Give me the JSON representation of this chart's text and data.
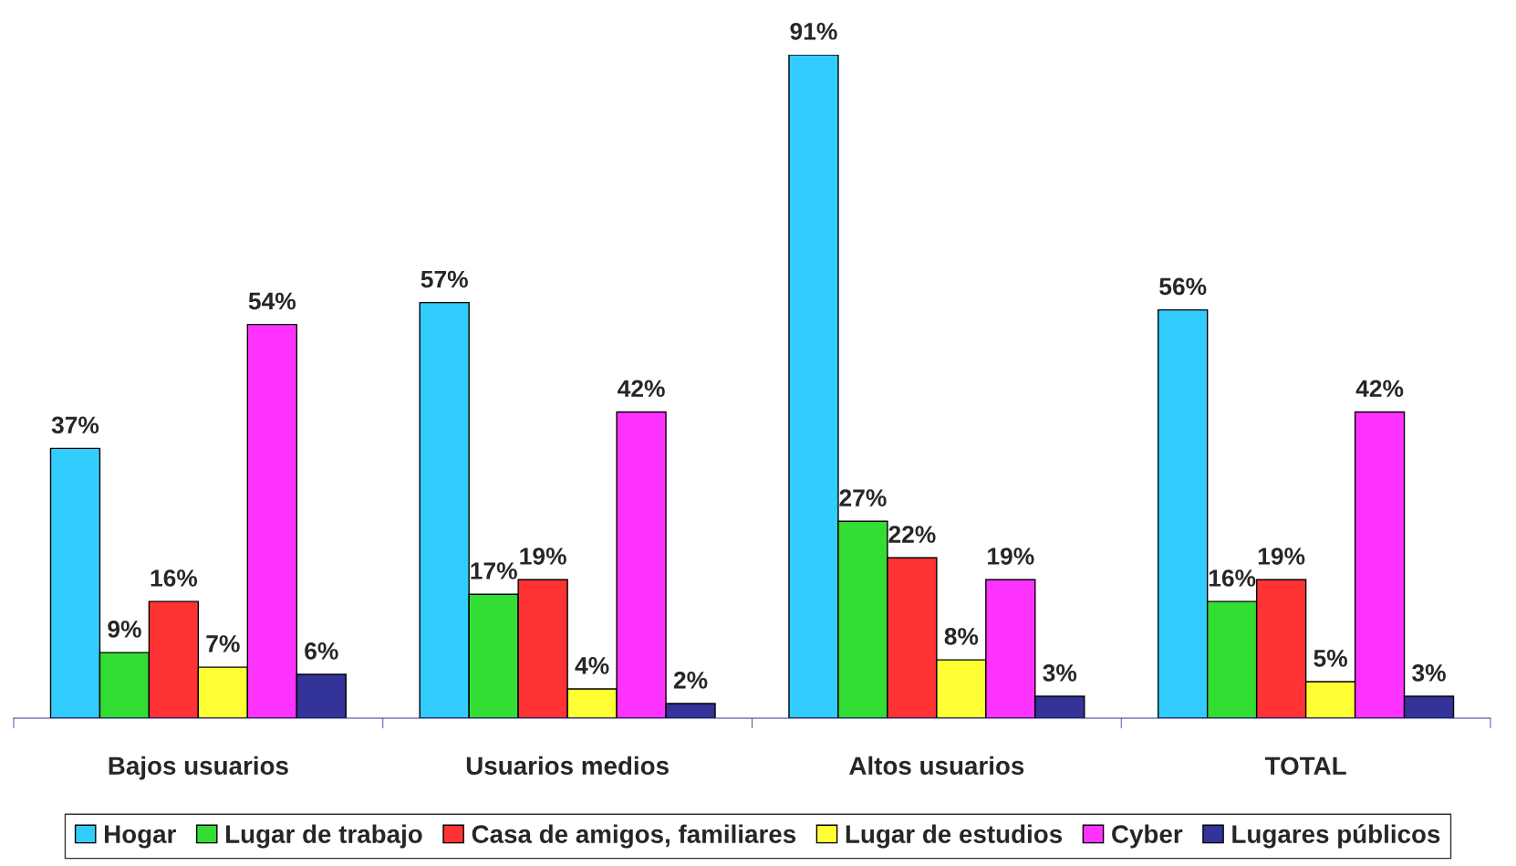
{
  "chart_data": {
    "type": "bar",
    "categories": [
      "Bajos usuarios",
      "Usuarios medios",
      "Altos usuarios",
      "TOTAL"
    ],
    "series": [
      {
        "name": "Hogar",
        "color": "#33ccff",
        "values": [
          37,
          57,
          91,
          56
        ],
        "value_labels": [
          "37%",
          "57%",
          "91%",
          "56%"
        ]
      },
      {
        "name": "Lugar de trabajo",
        "color": "#33dd33",
        "values": [
          9,
          17,
          27,
          16
        ],
        "value_labels": [
          "9%",
          "17%",
          "27%",
          "16%"
        ]
      },
      {
        "name": "Casa de amigos, familiares",
        "color": "#ff3333",
        "values": [
          16,
          19,
          22,
          19
        ],
        "value_labels": [
          "16%",
          "19%",
          "22%",
          "19%"
        ]
      },
      {
        "name": "Lugar de estudios",
        "color": "#ffff33",
        "values": [
          7,
          4,
          8,
          5
        ],
        "value_labels": [
          "7%",
          "4%",
          "8%",
          "5%"
        ]
      },
      {
        "name": "Cyber",
        "color": "#ff33ff",
        "values": [
          54,
          42,
          19,
          42
        ],
        "value_labels": [
          "54%",
          "42%",
          "19%",
          "42%"
        ]
      },
      {
        "name": "Lugares públicos",
        "color": "#333399",
        "values": [
          6,
          2,
          3,
          3
        ],
        "value_labels": [
          "6%",
          "2%",
          "3%",
          "3%"
        ]
      }
    ],
    "legend": "bottom",
    "grid": false
  }
}
